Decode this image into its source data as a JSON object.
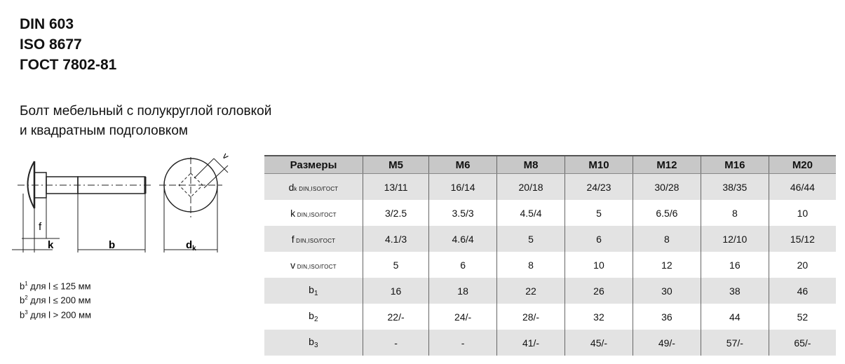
{
  "standards": [
    "DIN 603",
    "ISO 8677",
    "ГОСТ 7802-81"
  ],
  "description": [
    "Болт мебельный с полукруглой головкой",
    "и квадратным подголовком"
  ],
  "drawing_labels": {
    "f": "f",
    "k": "k",
    "b": "b",
    "dk": "d",
    "dk_sub": "k",
    "v": "v"
  },
  "notes": [
    {
      "sym": "b",
      "sup": "1",
      "text": " для l ≤ 125 мм"
    },
    {
      "sym": "b",
      "sup": "2",
      "text": " для l ≤ 200 мм"
    },
    {
      "sym": "b",
      "sup": "3",
      "text": " для l > 200 мм"
    }
  ],
  "table": {
    "headers": [
      "Размеры",
      "M5",
      "M6",
      "M8",
      "M10",
      "M12",
      "M16",
      "M20"
    ],
    "rows": [
      {
        "label": "d",
        "label_sub": "k DIN,ISO/ГОСТ",
        "values": [
          "13/11",
          "16/14",
          "20/18",
          "24/23",
          "30/28",
          "38/35",
          "46/44"
        ]
      },
      {
        "label": "k",
        "label_sub": " DIN,ISO/ГОСТ",
        "values": [
          "3/2.5",
          "3.5/3",
          "4.5/4",
          "5",
          "6.5/6",
          "8",
          "10"
        ]
      },
      {
        "label": "f",
        "label_sub": " DIN,ISO/ГОСТ",
        "values": [
          "4.1/3",
          "4.6/4",
          "5",
          "6",
          "8",
          "12/10",
          "15/12"
        ]
      },
      {
        "label": "v",
        "label_sub": " DIN,ISO/ГОСТ",
        "values": [
          "5",
          "6",
          "8",
          "10",
          "12",
          "16",
          "20"
        ]
      },
      {
        "label": "b",
        "label_sub": "1",
        "values": [
          "16",
          "18",
          "22",
          "26",
          "30",
          "38",
          "46"
        ]
      },
      {
        "label": "b",
        "label_sub": "2",
        "values": [
          "22/-",
          "24/-",
          "28/-",
          "32",
          "36",
          "44",
          "52"
        ]
      },
      {
        "label": "b",
        "label_sub": "3",
        "values": [
          "-",
          "-",
          "41/-",
          "45/-",
          "49/-",
          "57/-",
          "65/-"
        ]
      }
    ]
  }
}
